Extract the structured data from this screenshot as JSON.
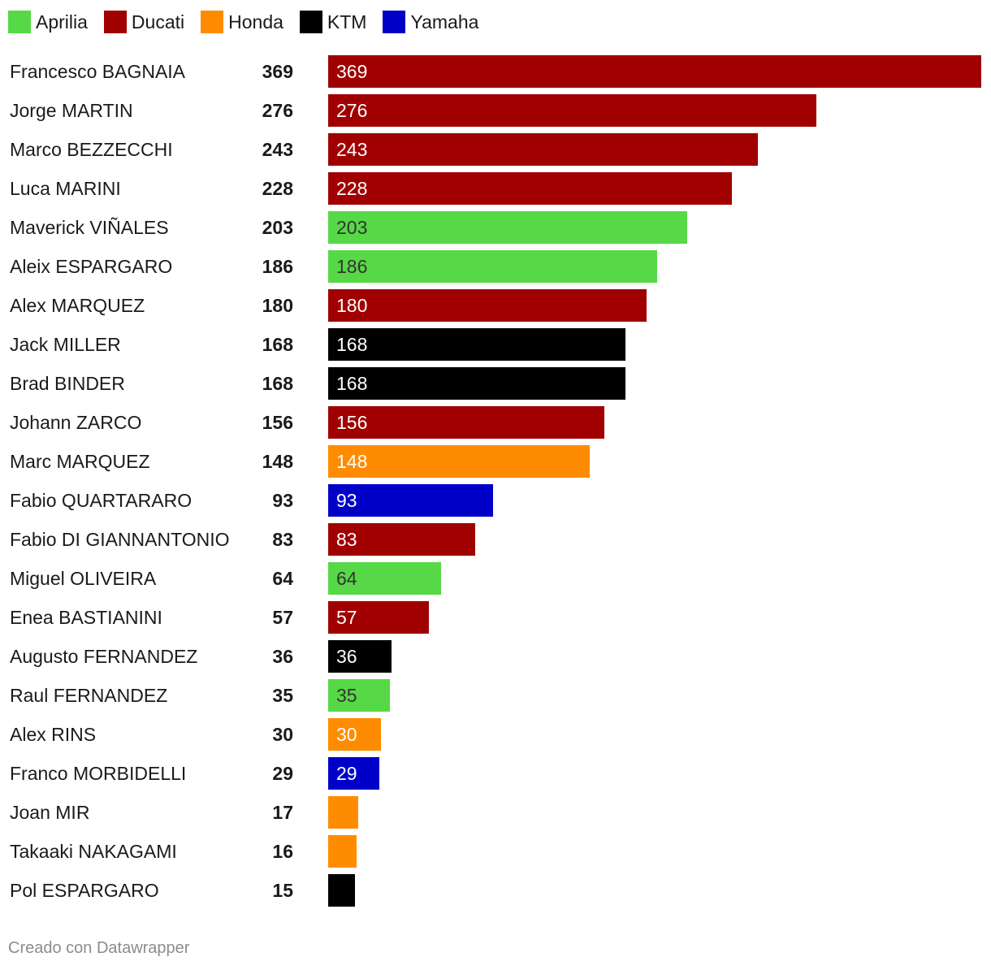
{
  "chart_data": {
    "type": "bar",
    "orientation": "horizontal",
    "legend": [
      {
        "name": "Aprilia",
        "color": "#57d847"
      },
      {
        "name": "Ducati",
        "color": "#a00000"
      },
      {
        "name": "Honda",
        "color": "#ff8c00"
      },
      {
        "name": "KTM",
        "color": "#000000"
      },
      {
        "name": "Yamaha",
        "color": "#0000c8"
      }
    ],
    "legend_placement": "top-left",
    "xlim": [
      0,
      369
    ],
    "grid": false,
    "rows": [
      {
        "name": "Francesco BAGNAIA",
        "value": 369,
        "team": "Ducati",
        "show_label": true
      },
      {
        "name": "Jorge MARTIN",
        "value": 276,
        "team": "Ducati",
        "show_label": true
      },
      {
        "name": "Marco BEZZECCHI",
        "value": 243,
        "team": "Ducati",
        "show_label": true
      },
      {
        "name": "Luca MARINI",
        "value": 228,
        "team": "Ducati",
        "show_label": true
      },
      {
        "name": "Maverick VIÑALES",
        "value": 203,
        "team": "Aprilia",
        "show_label": true
      },
      {
        "name": "Aleix ESPARGARO",
        "value": 186,
        "team": "Aprilia",
        "show_label": true
      },
      {
        "name": "Alex MARQUEZ",
        "value": 180,
        "team": "Ducati",
        "show_label": true
      },
      {
        "name": "Jack MILLER",
        "value": 168,
        "team": "KTM",
        "show_label": true
      },
      {
        "name": "Brad BINDER",
        "value": 168,
        "team": "KTM",
        "show_label": true
      },
      {
        "name": "Johann ZARCO",
        "value": 156,
        "team": "Ducati",
        "show_label": true
      },
      {
        "name": "Marc MARQUEZ",
        "value": 148,
        "team": "Honda",
        "show_label": true
      },
      {
        "name": "Fabio QUARTARARO",
        "value": 93,
        "team": "Yamaha",
        "show_label": true
      },
      {
        "name": "Fabio DI GIANNANTONIO",
        "value": 83,
        "team": "Ducati",
        "show_label": true
      },
      {
        "name": "Miguel OLIVEIRA",
        "value": 64,
        "team": "Aprilia",
        "show_label": true
      },
      {
        "name": "Enea BASTIANINI",
        "value": 57,
        "team": "Ducati",
        "show_label": true
      },
      {
        "name": "Augusto FERNANDEZ",
        "value": 36,
        "team": "KTM",
        "show_label": true
      },
      {
        "name": "Raul FERNANDEZ",
        "value": 35,
        "team": "Aprilia",
        "show_label": true
      },
      {
        "name": "Alex RINS",
        "value": 30,
        "team": "Honda",
        "show_label": true
      },
      {
        "name": "Franco MORBIDELLI",
        "value": 29,
        "team": "Yamaha",
        "show_label": true
      },
      {
        "name": "Joan MIR",
        "value": 17,
        "team": "Honda",
        "show_label": false
      },
      {
        "name": "Takaaki NAKAGAMI",
        "value": 16,
        "team": "Honda",
        "show_label": false
      },
      {
        "name": "Pol ESPARGARO",
        "value": 15,
        "team": "KTM",
        "show_label": false
      }
    ]
  },
  "label_colors": {
    "Aprilia": "#333333",
    "Ducati": "#ffffff",
    "Honda": "#ffffff",
    "KTM": "#ffffff",
    "Yamaha": "#ffffff"
  },
  "footer": {
    "credit": "Creado con Datawrapper"
  }
}
